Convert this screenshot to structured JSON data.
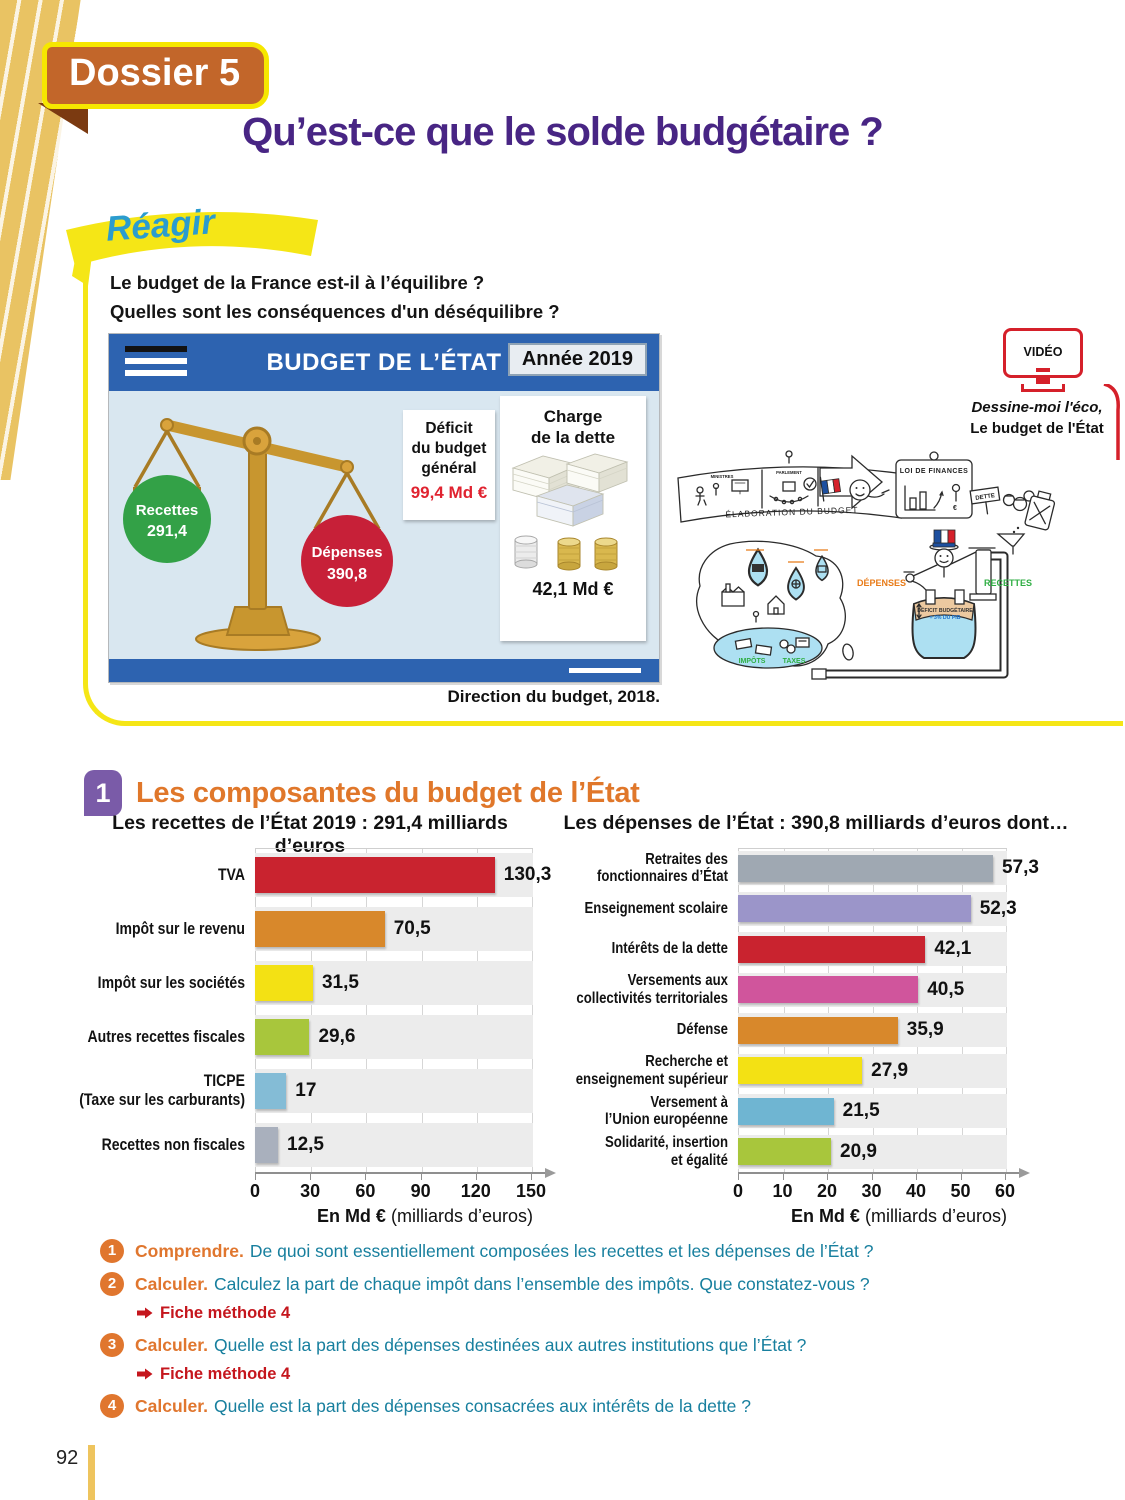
{
  "page": {
    "number": "92"
  },
  "header": {
    "dossier": "Dossier 5",
    "title": "Qu’est-ce que le solde budgétaire ?"
  },
  "reagir": {
    "banner": "Réagir",
    "question1": "Le budget de la France est-il à l’équilibre ?",
    "question2": "Quelles sont les conséquences d'un déséquilibre ?"
  },
  "infographic": {
    "title": "BUDGET DE L’ÉTAT",
    "year_badge": "Année 2019",
    "recettes": {
      "label": "Recettes",
      "value": "291,4"
    },
    "depenses": {
      "label": "Dépenses",
      "value": "390,8"
    },
    "deficit": {
      "line1": "Déficit",
      "line2": "du budget",
      "line3": "général",
      "value": "99,4 Md €"
    },
    "charge": {
      "line1": "Charge",
      "line2": "de la dette",
      "value": "42,1 Md €"
    },
    "source": "Direction du budget, 2018."
  },
  "video": {
    "label": "VIDÉO",
    "caption1": "Dessine-moi l'éco,",
    "caption2": "Le budget de l'État"
  },
  "cartoon": {
    "banner": "ÉLABORATION DU BUDGET",
    "ministres": "MINISTRES",
    "parlement": "PARLEMENT",
    "president1": "PRÉSIDENT",
    "president2": "DE LA",
    "president3": "RÉPUBLIQUE",
    "loi": "LOI DE FINANCES",
    "dette": "DETTE",
    "depenses": "DÉPENSES",
    "recettes": "RECETTES",
    "deficit": "DÉFICIT BUDGÉTAIRE",
    "pib": "= 3% DU PIB",
    "impots": "IMPÔTS",
    "taxes": "TAXES",
    "euro": "€"
  },
  "section1": {
    "number": "1",
    "title": "Les composantes du budget de l’État"
  },
  "chart_data": [
    {
      "type": "bar",
      "orientation": "horizontal",
      "title": "Les recettes de l’État 2019 : 291,4 milliards d’euros",
      "categories": [
        "TVA",
        "Impôt sur le revenu",
        "Impôt sur les sociétés",
        "Autres recettes fiscales",
        "TICPE\n(Taxe sur les carburants)",
        "Recettes non fiscales"
      ],
      "values": [
        130.3,
        70.5,
        31.5,
        29.6,
        17,
        12.5
      ],
      "value_labels": [
        "130,3",
        "70,5",
        "31,5",
        "29,6",
        "17",
        "12,5"
      ],
      "colors": [
        "#c9232f",
        "#d8882b",
        "#f3e114",
        "#a8c63c",
        "#84bcd6",
        "#a9b0bd"
      ],
      "xticks": [
        0,
        30,
        60,
        90,
        120,
        150
      ],
      "xlim": [
        0,
        150
      ],
      "xlabel_bold": "En Md €",
      "xlabel_rest": " (milliards d’euros)",
      "grid": true,
      "legend": false
    },
    {
      "type": "bar",
      "orientation": "horizontal",
      "title": "Les dépenses de l’État : 390,8 milliards d’euros dont…",
      "categories": [
        "Retraites des\nfonctionnaires d’État",
        "Enseignement scolaire",
        "Intérêts de la dette",
        "Versements aux\ncollectivités territoriales",
        "Défense",
        "Recherche et\nenseignement supérieur",
        "Versement à\nl’Union européenne",
        "Solidarité, insertion\net égalité"
      ],
      "values": [
        57.3,
        52.3,
        42.1,
        40.5,
        35.9,
        27.9,
        21.5,
        20.9
      ],
      "value_labels": [
        "57,3",
        "52,3",
        "42,1",
        "40,5",
        "35,9",
        "27,9",
        "21,5",
        "20,9"
      ],
      "colors": [
        "#9fa8b2",
        "#9b95c9",
        "#c9232f",
        "#d0559c",
        "#d8882b",
        "#f3e114",
        "#6fb5d2",
        "#a8c63c"
      ],
      "xticks": [
        0,
        10,
        20,
        30,
        40,
        50,
        60
      ],
      "xlim": [
        0,
        60
      ],
      "xlabel_bold": "En Md €",
      "xlabel_rest": " (milliards d’euros)",
      "grid": true,
      "legend": false
    }
  ],
  "questions": [
    {
      "num": "1",
      "lead": "Comprendre.",
      "text": "De quoi sont essentiellement composées les recettes et les dépenses de l’État ?"
    },
    {
      "num": "2",
      "lead": "Calculer.",
      "text": "Calculez la part de chaque impôt dans l’ensemble des impôts. Que constatez-vous ?",
      "fiche": "Fiche méthode 4"
    },
    {
      "num": "3",
      "lead": "Calculer.",
      "text": "Quelle est la part des dépenses destinées aux autres institutions que l’État ?",
      "fiche": "Fiche méthode 4"
    },
    {
      "num": "4",
      "lead": "Calculer.",
      "text": "Quelle est la part des dépenses consacrées aux intérêts de la dette ?"
    }
  ]
}
